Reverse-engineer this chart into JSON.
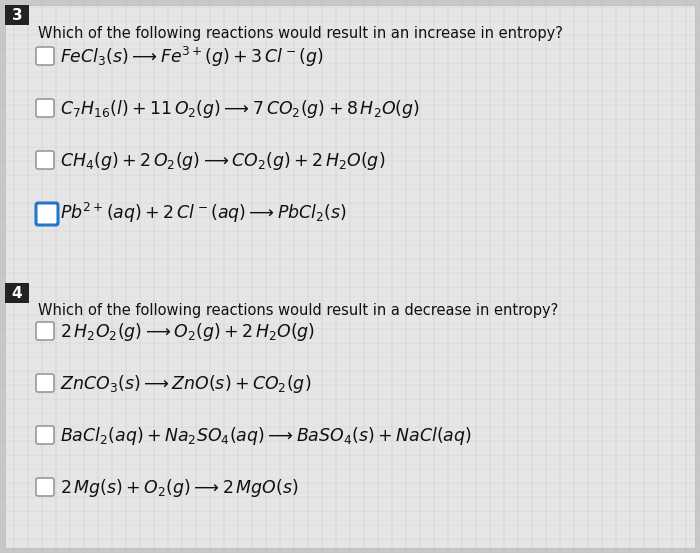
{
  "background_color": "#c8c8c8",
  "page_bg": "#e8e8e8",
  "grid_color": "#d8d8d8",
  "q3_number": "3",
  "q4_number": "4",
  "q3_question": "Which of the following reactions would result in an increase in entropy?",
  "q4_question": "Which of the following reactions would result in a decrease in entropy?",
  "q3_selected": [
    3
  ],
  "q4_selected": [],
  "checkbox_color_normal": "#999999",
  "checkbox_color_selected": "#2277cc",
  "number_bg": "#222222",
  "number_color": "#ffffff",
  "question_fontsize": 10.5,
  "option_fontsize": 12.5,
  "number_fontsize": 11,
  "text_color": "#111111"
}
